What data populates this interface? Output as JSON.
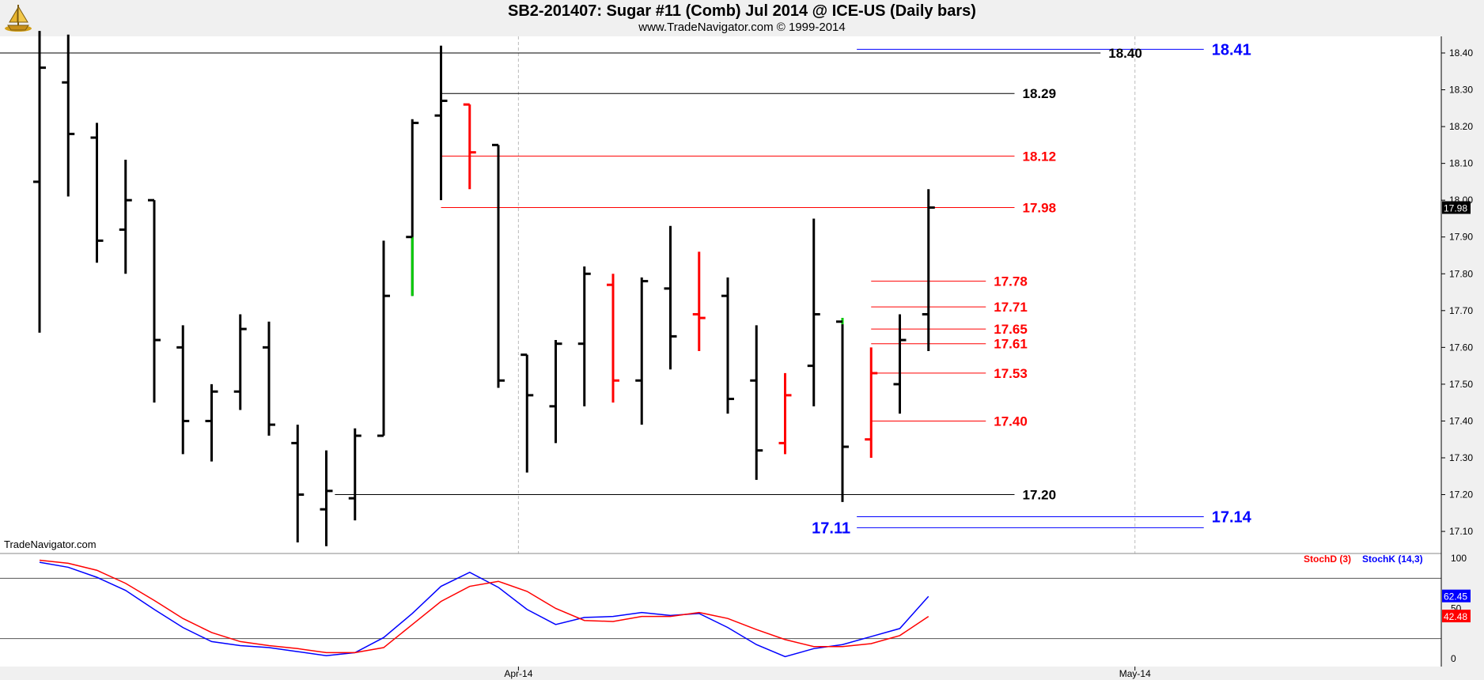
{
  "header": {
    "title": "SB2-201407:  Sugar #11 (Comb) Jul 2014 @ ICE-US  (Daily bars)",
    "subtitle": "www.TradeNavigator.com © 1999-2014",
    "logo_icon": "trade-navigator-ship-logo-icon"
  },
  "watermark": "TradeNavigator.com",
  "colors": {
    "black": "#000000",
    "red": "#ff0000",
    "blue": "#0000ff",
    "green": "#00cc00",
    "stochD": "#ff0000",
    "stochK": "#0000ff"
  },
  "chart_data": [
    {
      "type": "ohlc",
      "title": "SB2-201407:  Sugar #11 (Comb) Jul 2014 @ ICE-US  (Daily bars)",
      "ylim": [
        17.05,
        18.45
      ],
      "y_ticks": [
        "17.10",
        "17.20",
        "17.30",
        "17.40",
        "17.50",
        "17.60",
        "17.70",
        "17.80",
        "17.90",
        "18.00",
        "18.10",
        "18.20",
        "18.30",
        "18.40"
      ],
      "x_tick_labels": [
        {
          "label": "Apr-14",
          "bar": 16.7
        },
        {
          "label": "May-14",
          "bar": 38.2
        }
      ],
      "grid_vertical": [
        16.7,
        38.2
      ],
      "last_price": "17.98",
      "bars": [
        {
          "o": 18.05,
          "h": 18.55,
          "l": 17.64,
          "c": 18.36,
          "color": "black"
        },
        {
          "o": 18.32,
          "h": 18.45,
          "l": 18.01,
          "c": 18.18,
          "color": "black"
        },
        {
          "o": 18.17,
          "h": 18.21,
          "l": 17.83,
          "c": 17.89,
          "color": "black"
        },
        {
          "o": 17.92,
          "h": 18.11,
          "l": 17.8,
          "c": 18.0,
          "color": "black"
        },
        {
          "o": 18.0,
          "h": 18.0,
          "l": 17.45,
          "c": 17.62,
          "color": "black"
        },
        {
          "o": 17.6,
          "h": 17.66,
          "l": 17.31,
          "c": 17.4,
          "color": "black"
        },
        {
          "o": 17.4,
          "h": 17.5,
          "l": 17.29,
          "c": 17.48,
          "color": "black"
        },
        {
          "o": 17.48,
          "h": 17.69,
          "l": 17.43,
          "c": 17.65,
          "color": "black"
        },
        {
          "o": 17.6,
          "h": 17.67,
          "l": 17.36,
          "c": 17.39,
          "color": "black"
        },
        {
          "o": 17.34,
          "h": 17.39,
          "l": 17.07,
          "c": 17.2,
          "color": "black"
        },
        {
          "o": 17.16,
          "h": 17.32,
          "l": 17.06,
          "c": 17.21,
          "color": "black"
        },
        {
          "o": 17.19,
          "h": 17.38,
          "l": 17.13,
          "c": 17.36,
          "color": "black"
        },
        {
          "o": 17.36,
          "h": 17.89,
          "l": 17.36,
          "c": 17.74,
          "color": "black"
        },
        {
          "o": 17.9,
          "h": 18.22,
          "l": 17.74,
          "c": 18.21,
          "color": "black",
          "low_segment": "green"
        },
        {
          "o": 18.23,
          "h": 18.42,
          "l": 18.0,
          "c": 18.27,
          "color": "black"
        },
        {
          "o": 18.26,
          "h": 18.26,
          "l": 18.03,
          "c": 18.13,
          "color": "red"
        },
        {
          "o": 18.15,
          "h": 18.15,
          "l": 17.49,
          "c": 17.51,
          "color": "black"
        },
        {
          "o": 17.58,
          "h": 17.58,
          "l": 17.26,
          "c": 17.47,
          "color": "black"
        },
        {
          "o": 17.44,
          "h": 17.62,
          "l": 17.34,
          "c": 17.61,
          "color": "black"
        },
        {
          "o": 17.61,
          "h": 17.82,
          "l": 17.44,
          "c": 17.8,
          "color": "black"
        },
        {
          "o": 17.77,
          "h": 17.8,
          "l": 17.45,
          "c": 17.51,
          "color": "red"
        },
        {
          "o": 17.51,
          "h": 17.79,
          "l": 17.39,
          "c": 17.78,
          "color": "black"
        },
        {
          "o": 17.76,
          "h": 17.93,
          "l": 17.54,
          "c": 17.63,
          "color": "black"
        },
        {
          "o": 17.69,
          "h": 17.86,
          "l": 17.59,
          "c": 17.68,
          "color": "red"
        },
        {
          "o": 17.74,
          "h": 17.79,
          "l": 17.42,
          "c": 17.46,
          "color": "black"
        },
        {
          "o": 17.51,
          "h": 17.66,
          "l": 17.24,
          "c": 17.32,
          "color": "black"
        },
        {
          "o": 17.34,
          "h": 17.53,
          "l": 17.31,
          "c": 17.47,
          "color": "red"
        },
        {
          "o": 17.55,
          "h": 17.95,
          "l": 17.44,
          "c": 17.69,
          "color": "black"
        },
        {
          "o": 17.67,
          "h": 17.68,
          "l": 17.18,
          "c": 17.33,
          "color": "black",
          "high_segment": "green"
        },
        {
          "o": 17.35,
          "h": 17.6,
          "l": 17.3,
          "c": 17.53,
          "color": "red"
        },
        {
          "o": 17.5,
          "h": 17.69,
          "l": 17.42,
          "c": 17.62,
          "color": "black"
        },
        {
          "o": 17.69,
          "h": 18.03,
          "l": 17.59,
          "c": 17.98,
          "color": "black"
        }
      ],
      "levels": [
        {
          "value": 18.41,
          "label": "18.41",
          "color": "blue",
          "from_bar": 28.5,
          "to_bar": 40.6,
          "label_side": "right"
        },
        {
          "value": 18.4,
          "label": "18.40",
          "color": "black",
          "from_bar": 0,
          "to_bar": 37.0,
          "label_side": "right"
        },
        {
          "value": 18.29,
          "label": "18.29",
          "color": "black",
          "from_bar": 14.0,
          "to_bar": 34.0,
          "label_side": "right"
        },
        {
          "value": 18.12,
          "label": "18.12",
          "color": "red",
          "from_bar": 14.0,
          "to_bar": 34.0,
          "label_side": "right"
        },
        {
          "value": 17.98,
          "label": "17.98",
          "color": "red",
          "from_bar": 14.0,
          "to_bar": 34.0,
          "label_side": "right"
        },
        {
          "value": 17.78,
          "label": "17.78",
          "color": "red",
          "from_bar": 29.0,
          "to_bar": 33.0,
          "label_side": "right"
        },
        {
          "value": 17.71,
          "label": "17.71",
          "color": "red",
          "from_bar": 29.0,
          "to_bar": 33.0,
          "label_side": "right"
        },
        {
          "value": 17.65,
          "label": "17.65",
          "color": "red",
          "from_bar": 29.0,
          "to_bar": 33.0,
          "label_side": "right"
        },
        {
          "value": 17.61,
          "label": "17.61",
          "color": "red",
          "from_bar": 29.0,
          "to_bar": 33.0,
          "label_side": "right"
        },
        {
          "value": 17.53,
          "label": "17.53",
          "color": "red",
          "from_bar": 29.0,
          "to_bar": 33.0,
          "label_side": "right"
        },
        {
          "value": 17.4,
          "label": "17.40",
          "color": "red",
          "from_bar": 29.0,
          "to_bar": 33.0,
          "label_side": "right"
        },
        {
          "value": 17.2,
          "label": "17.20",
          "color": "black",
          "from_bar": 10.3,
          "to_bar": 34.0,
          "label_side": "right"
        },
        {
          "value": 17.14,
          "label": "17.14",
          "color": "blue",
          "from_bar": 28.5,
          "to_bar": 40.6,
          "label_side": "right"
        },
        {
          "value": 17.11,
          "label": "17.11",
          "color": "blue",
          "from_bar": 28.5,
          "to_bar": 40.6,
          "label_side": "left"
        }
      ]
    },
    {
      "type": "line",
      "ylim": [
        0,
        100
      ],
      "y_ticks": [
        "100",
        "50",
        "0"
      ],
      "reference_lines": [
        80,
        20
      ],
      "legend": [
        {
          "name": "StochD (3)",
          "color": "red"
        },
        {
          "name": "StochK (14,3)",
          "color": "blue"
        }
      ],
      "last_values": {
        "StochK": "62.45",
        "StochD": "42.48"
      },
      "series": [
        {
          "name": "StochK (14,3)",
          "color": "blue",
          "values": [
            96,
            91,
            81,
            68,
            49,
            31,
            17,
            13,
            11,
            7,
            3,
            6,
            21,
            45,
            72,
            86,
            71,
            49,
            34,
            41,
            42,
            46,
            43,
            45,
            31,
            14,
            2,
            10,
            14,
            22,
            30,
            62
          ]
        },
        {
          "name": "StochD (3)",
          "color": "red",
          "values": [
            98,
            95,
            88,
            75,
            58,
            40,
            26,
            17,
            13,
            10,
            6,
            6,
            11,
            34,
            57,
            72,
            77,
            67,
            50,
            38,
            37,
            42,
            42,
            46,
            40,
            29,
            19,
            12,
            12,
            15,
            23,
            42
          ]
        }
      ]
    }
  ]
}
